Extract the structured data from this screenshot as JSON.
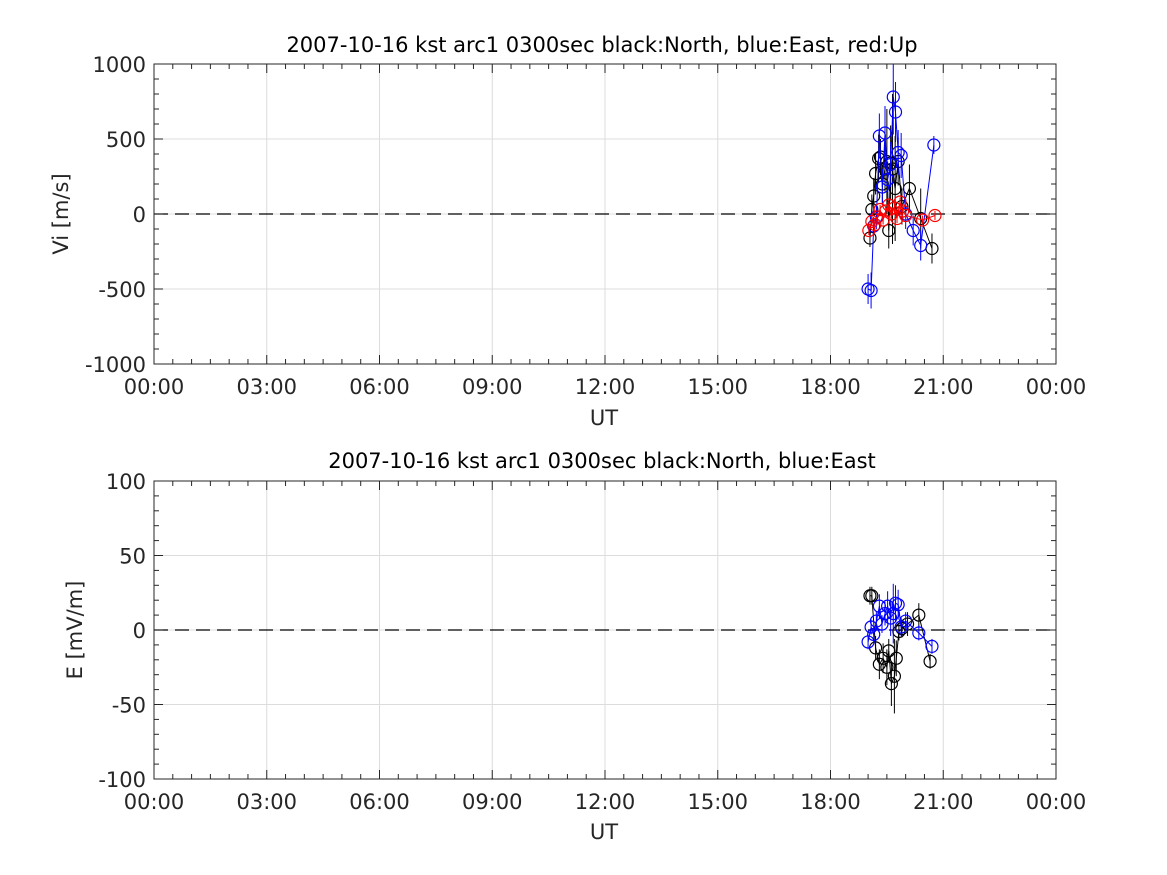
{
  "chart_data": [
    {
      "type": "scatter",
      "title": "2007-10-16 kst arc1 0300sec black:North, blue:East, red:Up",
      "xlabel": "UT",
      "ylabel": "Vi [m/s]",
      "xlim": [
        0,
        24
      ],
      "ylim": [
        -1000,
        1000
      ],
      "x_ticks": [
        "00:00",
        "03:00",
        "06:00",
        "09:00",
        "12:00",
        "15:00",
        "18:00",
        "21:00",
        "00:00"
      ],
      "y_ticks": [
        "1000",
        "500",
        "0",
        "-500",
        "-1000"
      ],
      "grid": true,
      "reference_line": 0,
      "series": [
        {
          "color": "#000000",
          "x": [
            19.05,
            19.1,
            19.15,
            19.2,
            19.28,
            19.33,
            19.38,
            19.45,
            19.5,
            19.55,
            19.6,
            19.65,
            19.72,
            19.8,
            19.9,
            20.1,
            20.4,
            20.7
          ],
          "y": [
            -160,
            30,
            120,
            270,
            370,
            380,
            200,
            300,
            350,
            -110,
            340,
            300,
            170,
            350,
            50,
            170,
            -30,
            -230
          ],
          "err": [
            60,
            100,
            120,
            140,
            160,
            120,
            130,
            150,
            350,
            120,
            250,
            500,
            350,
            160,
            120,
            160,
            200,
            100
          ]
        },
        {
          "color": "#0000ff",
          "x": [
            19.0,
            19.08,
            19.15,
            19.22,
            19.3,
            19.38,
            19.45,
            19.52,
            19.6,
            19.67,
            19.73,
            19.8,
            19.88,
            20.0,
            20.2,
            20.4,
            20.75
          ],
          "y": [
            -500,
            -510,
            -80,
            -20,
            520,
            180,
            540,
            230,
            330,
            780,
            680,
            410,
            390,
            0,
            -110,
            -210,
            460
          ],
          "err": [
            100,
            120,
            60,
            80,
            150,
            120,
            180,
            120,
            150,
            250,
            200,
            150,
            150,
            100,
            100,
            100,
            60
          ]
        },
        {
          "color": "#ff0000",
          "x": [
            19.02,
            19.1,
            19.18,
            19.25,
            19.32,
            19.4,
            19.47,
            19.55,
            19.62,
            19.7,
            19.77,
            19.85,
            19.92,
            20.0,
            20.45,
            20.78
          ],
          "y": [
            -110,
            -50,
            -70,
            -20,
            30,
            -40,
            20,
            60,
            0,
            40,
            -30,
            80,
            20,
            -10,
            -40,
            -10
          ],
          "err": [
            30,
            30,
            30,
            30,
            30,
            30,
            30,
            30,
            30,
            30,
            30,
            30,
            30,
            30,
            30,
            30
          ]
        }
      ]
    },
    {
      "type": "scatter",
      "title": "2007-10-16 kst arc1 0300sec black:North, blue:East",
      "xlabel": "UT",
      "ylabel": "E [mV/m]",
      "xlim": [
        0,
        24
      ],
      "ylim": [
        -100,
        100
      ],
      "x_ticks": [
        "00:00",
        "03:00",
        "06:00",
        "09:00",
        "12:00",
        "15:00",
        "18:00",
        "21:00",
        "00:00"
      ],
      "y_ticks": [
        "100",
        "50",
        "0",
        "-50",
        "-100"
      ],
      "grid": true,
      "reference_line": 0,
      "series": [
        {
          "color": "#000000",
          "x": [
            19.05,
            19.1,
            19.2,
            19.3,
            19.4,
            19.5,
            19.55,
            19.62,
            19.7,
            19.75,
            19.82,
            19.9,
            20.05,
            20.35,
            20.65
          ],
          "y": [
            23,
            23,
            -12,
            -23,
            -19,
            -25,
            -14,
            -36,
            -31,
            -19,
            -1,
            1,
            4,
            10,
            -21
          ],
          "err": [
            6,
            6,
            8,
            10,
            10,
            12,
            8,
            15,
            25,
            12,
            6,
            6,
            8,
            8,
            5
          ]
        },
        {
          "color": "#0000ff",
          "x": [
            19.0,
            19.08,
            19.15,
            19.22,
            19.3,
            19.37,
            19.45,
            19.52,
            19.6,
            19.67,
            19.73,
            19.8,
            19.88,
            20.0,
            20.35,
            20.7
          ],
          "y": [
            -8,
            2,
            -3,
            6,
            16,
            4,
            11,
            16,
            8,
            11,
            18,
            17,
            2,
            6,
            -2,
            -11
          ],
          "err": [
            5,
            5,
            5,
            6,
            8,
            6,
            8,
            10,
            12,
            20,
            12,
            10,
            6,
            6,
            5,
            5
          ]
        }
      ]
    }
  ]
}
